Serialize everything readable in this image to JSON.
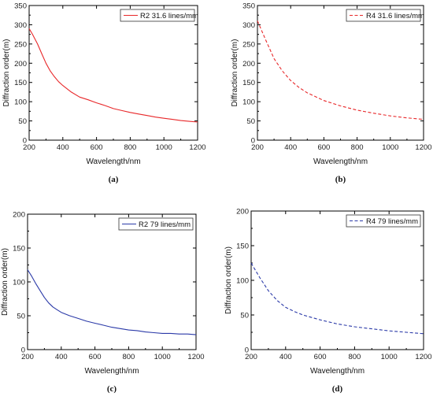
{
  "chart_data": [
    {
      "type": "line",
      "caption": "(a)",
      "xlabel": "Wavelength/nm",
      "ylabel": "Diffraction order(m)",
      "xlim": [
        200,
        1200
      ],
      "ylim": [
        0,
        350
      ],
      "xticks": [
        200,
        400,
        600,
        800,
        1000,
        1200
      ],
      "yticks": [
        0,
        50,
        100,
        150,
        200,
        250,
        300,
        350
      ],
      "grid": false,
      "legend_position": "top-right",
      "series": [
        {
          "name": "R2 31.6 lines/mm",
          "color": "#e8282a",
          "style": "solid",
          "x": [
            200,
            220,
            250,
            275,
            300,
            325,
            350,
            375,
            400,
            450,
            500,
            550,
            600,
            650,
            700,
            750,
            800,
            850,
            900,
            950,
            1000,
            1050,
            1100,
            1150,
            1200
          ],
          "y": [
            290,
            275,
            250,
            225,
            200,
            180,
            165,
            152,
            142,
            125,
            112,
            105,
            97,
            90,
            82,
            77,
            72,
            68,
            64,
            60,
            57,
            54,
            51,
            49,
            47
          ]
        }
      ]
    },
    {
      "type": "line",
      "caption": "(b)",
      "xlabel": "Wavelength/nm",
      "ylabel": "Diffraction order(m)",
      "xlim": [
        200,
        1200
      ],
      "ylim": [
        0,
        350
      ],
      "xticks": [
        200,
        400,
        600,
        800,
        1000,
        1200
      ],
      "yticks": [
        0,
        50,
        100,
        150,
        200,
        250,
        300,
        350
      ],
      "grid": false,
      "legend_position": "top-right",
      "series": [
        {
          "name": "R4 31.6 lines/mm",
          "color": "#e8282a",
          "style": "dashed",
          "x": [
            200,
            250,
            300,
            350,
            400,
            450,
            500,
            600,
            700,
            800,
            900,
            1000,
            1100,
            1200
          ],
          "y": [
            310,
            260,
            212,
            180,
            155,
            137,
            123,
            103,
            89,
            78,
            70,
            63,
            58,
            54
          ]
        }
      ]
    },
    {
      "type": "line",
      "caption": "(c)",
      "xlabel": "Wavelength/nm",
      "ylabel": "Diffraction order(m)",
      "xlim": [
        200,
        1200
      ],
      "ylim": [
        0,
        200
      ],
      "xticks": [
        200,
        400,
        600,
        800,
        1000,
        1200
      ],
      "yticks": [
        0,
        50,
        100,
        150,
        200
      ],
      "grid": false,
      "legend_position": "top-right",
      "series": [
        {
          "name": "R2 79 lines/mm",
          "color": "#2b3aa8",
          "style": "solid",
          "x": [
            200,
            225,
            250,
            275,
            300,
            325,
            350,
            375,
            400,
            450,
            500,
            550,
            600,
            650,
            700,
            750,
            800,
            850,
            900,
            950,
            1000,
            1050,
            1100,
            1150,
            1200
          ],
          "y": [
            118,
            108,
            97,
            87,
            77,
            69,
            63,
            59,
            55,
            50,
            46,
            42,
            39,
            36,
            33,
            31,
            29,
            28,
            26,
            25,
            24,
            24,
            23,
            23,
            22
          ]
        }
      ]
    },
    {
      "type": "line",
      "caption": "(d)",
      "xlabel": "Wavelength/nm",
      "ylabel": "Diffraction order(m)",
      "xlim": [
        200,
        1200
      ],
      "ylim": [
        0,
        200
      ],
      "xticks": [
        200,
        400,
        600,
        800,
        1000,
        1200
      ],
      "yticks": [
        0,
        50,
        100,
        150,
        200
      ],
      "grid": false,
      "legend_position": "top-right",
      "series": [
        {
          "name": "R4 79 lines/mm",
          "color": "#2b3aa8",
          "style": "dashed",
          "x": [
            200,
            250,
            300,
            350,
            400,
            450,
            500,
            600,
            700,
            800,
            900,
            1000,
            1100,
            1200
          ],
          "y": [
            125,
            104,
            85,
            71,
            61,
            55,
            50,
            43,
            37,
            33,
            30,
            27,
            25,
            23
          ]
        }
      ]
    }
  ]
}
